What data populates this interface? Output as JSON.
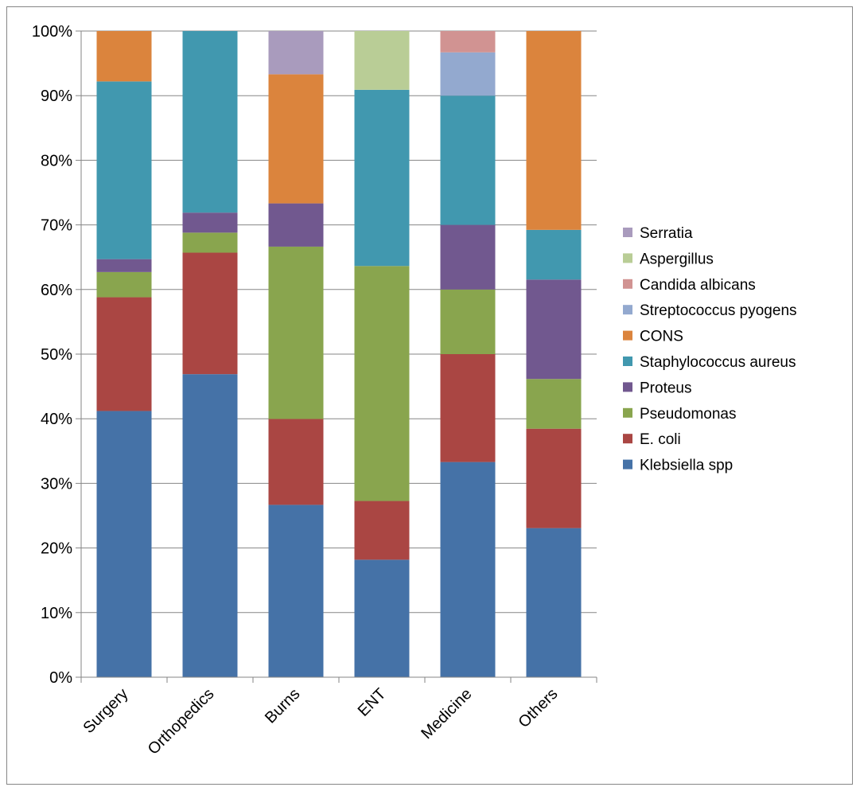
{
  "chart_data": {
    "type": "bar",
    "stacked": true,
    "percent_stacked": true,
    "title": "",
    "xlabel": "",
    "ylabel": "",
    "categories": [
      "Surgery",
      "Orthopedics",
      "Burns",
      "ENT",
      "Medicine",
      "Others"
    ],
    "ylim": [
      0,
      100
    ],
    "y_tick_labels": [
      "0%",
      "10%",
      "20%",
      "30%",
      "40%",
      "50%",
      "60%",
      "70%",
      "80%",
      "90%",
      "100%"
    ],
    "grid": true,
    "legend_position": "right",
    "series": [
      {
        "name": "Klebsiella spp",
        "color": "#4572A7",
        "values": [
          41.2,
          46.9,
          26.7,
          18.2,
          33.3,
          23.1
        ]
      },
      {
        "name": "E. coli",
        "color": "#AA4643",
        "values": [
          17.6,
          18.8,
          13.3,
          9.1,
          16.7,
          15.4
        ]
      },
      {
        "name": "Pseudomonas",
        "color": "#89A54E",
        "values": [
          3.9,
          3.1,
          26.7,
          36.4,
          10.0,
          7.7
        ]
      },
      {
        "name": "Proteus",
        "color": "#71588F",
        "values": [
          2.0,
          3.1,
          6.7,
          0,
          10.0,
          15.4
        ]
      },
      {
        "name": "Staphylococcus aureus",
        "color": "#4198AF",
        "values": [
          27.5,
          28.1,
          0,
          27.3,
          20.0,
          7.7
        ]
      },
      {
        "name": "CONS",
        "color": "#DB843D",
        "values": [
          7.8,
          0,
          20.0,
          0,
          0,
          30.8
        ]
      },
      {
        "name": "Streptococcus pyogens",
        "color": "#93A9CF",
        "values": [
          0,
          0,
          0,
          0,
          6.7,
          0
        ]
      },
      {
        "name": "Candida albicans",
        "color": "#D19392",
        "values": [
          0,
          0,
          0,
          0,
          3.3,
          0
        ]
      },
      {
        "name": "Aspergillus",
        "color": "#B9CD96",
        "values": [
          0,
          0,
          0,
          9.1,
          0,
          0
        ]
      },
      {
        "name": "Serratia",
        "color": "#A99BBD",
        "values": [
          0,
          0,
          6.7,
          0,
          0,
          0
        ]
      }
    ]
  }
}
